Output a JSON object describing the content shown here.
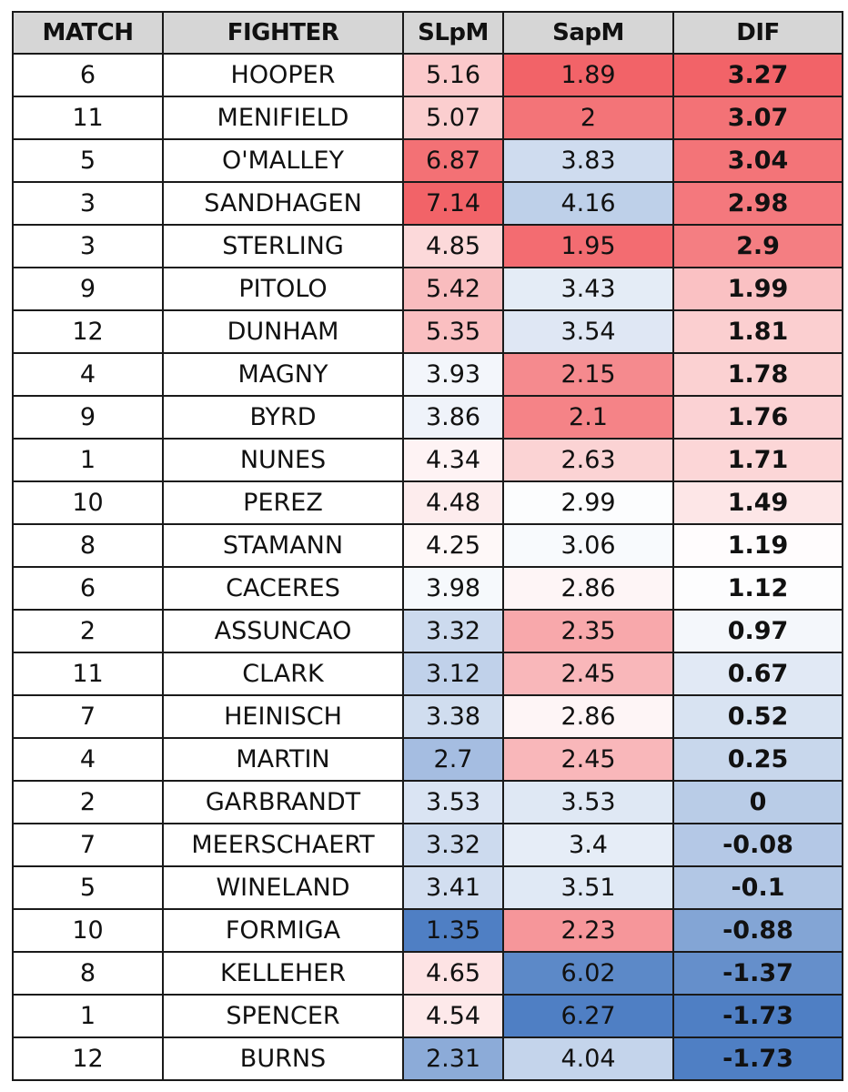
{
  "table": {
    "headers": [
      "MATCH",
      "FIGHTER",
      "SLpM",
      "SapM",
      "DIF"
    ]
  },
  "colors": {
    "high": "#f26368",
    "mid": "#ffffff",
    "low": "#4f7fc4",
    "header_bg": "#d6d6d6"
  },
  "chart_data": {
    "type": "table",
    "columns": [
      "MATCH",
      "FIGHTER",
      "SLpM",
      "SapM",
      "DIF"
    ],
    "rows": [
      [
        "6",
        "HOOPER",
        "5.16",
        "1.89",
        "3.27"
      ],
      [
        "11",
        "MENIFIELD",
        "5.07",
        "2",
        "3.07"
      ],
      [
        "5",
        "O'MALLEY",
        "6.87",
        "3.83",
        "3.04"
      ],
      [
        "3",
        "SANDHAGEN",
        "7.14",
        "4.16",
        "2.98"
      ],
      [
        "3",
        "STERLING",
        "4.85",
        "1.95",
        "2.9"
      ],
      [
        "9",
        "PITOLO",
        "5.42",
        "3.43",
        "1.99"
      ],
      [
        "12",
        "DUNHAM",
        "5.35",
        "3.54",
        "1.81"
      ],
      [
        "4",
        "MAGNY",
        "3.93",
        "2.15",
        "1.78"
      ],
      [
        "9",
        "BYRD",
        "3.86",
        "2.1",
        "1.76"
      ],
      [
        "1",
        "NUNES",
        "4.34",
        "2.63",
        "1.71"
      ],
      [
        "10",
        "PEREZ",
        "4.48",
        "2.99",
        "1.49"
      ],
      [
        "8",
        "STAMANN",
        "4.25",
        "3.06",
        "1.19"
      ],
      [
        "6",
        "CACERES",
        "3.98",
        "2.86",
        "1.12"
      ],
      [
        "2",
        "ASSUNCAO",
        "3.32",
        "2.35",
        "0.97"
      ],
      [
        "11",
        "CLARK",
        "3.12",
        "2.45",
        "0.67"
      ],
      [
        "7",
        "HEINISCH",
        "3.38",
        "2.86",
        "0.52"
      ],
      [
        "4",
        "MARTIN",
        "2.7",
        "2.45",
        "0.25"
      ],
      [
        "2",
        "GARBRANDT",
        "3.53",
        "3.53",
        "0"
      ],
      [
        "7",
        "MEERSCHAERT",
        "3.32",
        "3.4",
        "-0.08"
      ],
      [
        "5",
        "WINELAND",
        "3.41",
        "3.51",
        "-0.1"
      ],
      [
        "10",
        "FORMIGA",
        "1.35",
        "2.23",
        "-0.88"
      ],
      [
        "8",
        "KELLEHER",
        "4.65",
        "6.02",
        "-1.37"
      ],
      [
        "1",
        "SPENCER",
        "4.54",
        "6.27",
        "-1.73"
      ],
      [
        "12",
        "BURNS",
        "2.31",
        "4.04",
        "-1.73"
      ]
    ],
    "heatmap_columns": {
      "SLpM": {
        "high_is": "red"
      },
      "SapM": {
        "high_is": "blue"
      },
      "DIF": {
        "high_is": "red"
      }
    }
  }
}
